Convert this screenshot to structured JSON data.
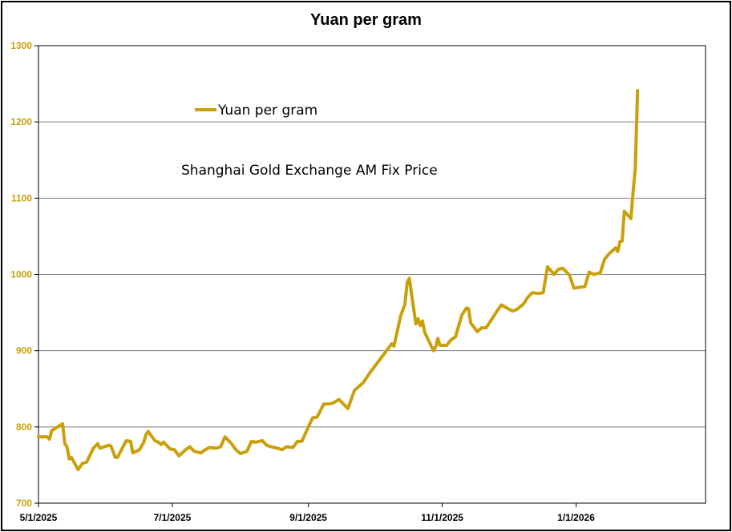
{
  "chart_data": {
    "type": "line",
    "title": "Yuan per gram",
    "xlabel": "",
    "ylabel": "",
    "ylim": [
      700,
      1300
    ],
    "yticks": [
      700,
      800,
      900,
      1000,
      1100,
      1200,
      1300
    ],
    "xlim": [
      "2025-05-01",
      "2026-03-01"
    ],
    "xticks": [
      "2025-05-01",
      "2025-07-01",
      "2025-09-01",
      "2025-11-01",
      "2026-01-01"
    ],
    "xtick_labels": [
      "5/1/2025",
      "7/1/2025",
      "9/1/2025",
      "11/1/2025",
      "1/1/2026"
    ],
    "grid": "horizontal",
    "legend": "upper-left, inside plot",
    "annotation": "Shanghai Gold Exchange AM Fix Price",
    "colors": {
      "series": "#C9A00C",
      "ytick": "#C9A00C",
      "grid": "#7f7f7f"
    },
    "series": [
      {
        "name": "Yuan per gram",
        "x": [
          "2025-05-01",
          "2025-05-05",
          "2025-05-06",
          "2025-05-07",
          "2025-05-12",
          "2025-05-13",
          "2025-05-14",
          "2025-05-15",
          "2025-05-16",
          "2025-05-19",
          "2025-05-21",
          "2025-05-23",
          "2025-05-26",
          "2025-05-28",
          "2025-05-29",
          "2025-06-02",
          "2025-06-03",
          "2025-06-05",
          "2025-06-06",
          "2025-06-10",
          "2025-06-12",
          "2025-06-13",
          "2025-06-16",
          "2025-06-18",
          "2025-06-19",
          "2025-06-20",
          "2025-06-23",
          "2025-06-24",
          "2025-06-26",
          "2025-06-27",
          "2025-06-30",
          "2025-07-02",
          "2025-07-04",
          "2025-07-07",
          "2025-07-09",
          "2025-07-11",
          "2025-07-14",
          "2025-07-16",
          "2025-07-18",
          "2025-07-21",
          "2025-07-23",
          "2025-07-25",
          "2025-07-28",
          "2025-07-30",
          "2025-08-01",
          "2025-08-04",
          "2025-08-06",
          "2025-08-08",
          "2025-08-11",
          "2025-08-13",
          "2025-08-15",
          "2025-08-18",
          "2025-08-20",
          "2025-08-22",
          "2025-08-25",
          "2025-08-27",
          "2025-08-29",
          "2025-09-01",
          "2025-09-03",
          "2025-09-05",
          "2025-09-08",
          "2025-09-10",
          "2025-09-12",
          "2025-09-15",
          "2025-09-17",
          "2025-09-19",
          "2025-09-22",
          "2025-09-24",
          "2025-09-26",
          "2025-09-29",
          "2025-10-09",
          "2025-10-10",
          "2025-10-13",
          "2025-10-14",
          "2025-10-15",
          "2025-10-16",
          "2025-10-17",
          "2025-10-20",
          "2025-10-21",
          "2025-10-22",
          "2025-10-23",
          "2025-10-24",
          "2025-10-27",
          "2025-10-28",
          "2025-10-29",
          "2025-10-30",
          "2025-10-31",
          "2025-11-03",
          "2025-11-05",
          "2025-11-07",
          "2025-11-10",
          "2025-11-12",
          "2025-11-13",
          "2025-11-14",
          "2025-11-17",
          "2025-11-19",
          "2025-11-21",
          "2025-11-24",
          "2025-11-26",
          "2025-11-28",
          "2025-12-01",
          "2025-12-03",
          "2025-12-05",
          "2025-12-08",
          "2025-12-10",
          "2025-12-12",
          "2025-12-15",
          "2025-12-17",
          "2025-12-19",
          "2025-12-22",
          "2025-12-24",
          "2025-12-26",
          "2025-12-29",
          "2025-12-31",
          "2026-01-05",
          "2026-01-07",
          "2026-01-09",
          "2026-01-12",
          "2026-01-14",
          "2026-01-16",
          "2026-01-19",
          "2026-01-20",
          "2026-01-21",
          "2026-01-22",
          "2026-01-23",
          "2026-01-26",
          "2026-01-27",
          "2026-01-28",
          "2026-01-29"
        ],
        "values": [
          787,
          787,
          784,
          795,
          804,
          778,
          774,
          758,
          760,
          744,
          752,
          754,
          772,
          778,
          772,
          776,
          775,
          760,
          760,
          782,
          781,
          766,
          770,
          780,
          790,
          794,
          782,
          781,
          777,
          780,
          771,
          770,
          762,
          770,
          774,
          768,
          766,
          770,
          773,
          772,
          774,
          787,
          778,
          770,
          765,
          768,
          781,
          780,
          782,
          776,
          774,
          772,
          770,
          774,
          773,
          781,
          781,
          800,
          812,
          813,
          830,
          830,
          831,
          836,
          830,
          824,
          848,
          853,
          858,
          871,
          909,
          906,
          945,
          953,
          961,
          989,
          995,
          935,
          942,
          933,
          939,
          924,
          906,
          900,
          905,
          916,
          907,
          907,
          914,
          918,
          947,
          956,
          955,
          936,
          925,
          930,
          930,
          943,
          952,
          960,
          955,
          952,
          954,
          961,
          970,
          976,
          975,
          976,
          1010,
          1000,
          1007,
          1008,
          999,
          982,
          984,
          1003,
          1000,
          1002,
          1020,
          1027,
          1035,
          1030,
          1043,
          1044,
          1083,
          1073,
          1109,
          1139,
          1241
        ]
      }
    ]
  }
}
